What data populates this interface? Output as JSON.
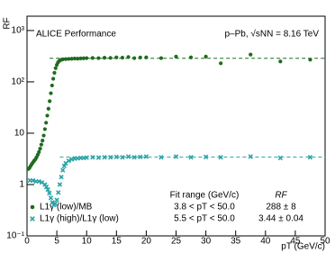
{
  "chart_data": {
    "type": "scatter",
    "y_label": "RF",
    "x_label": "pT (GeV/c)",
    "annotations": [
      "ALICE Performance",
      "p–Pb, √sNN = 8.16 TeV"
    ],
    "legend_headers": [
      "Fit range (GeV/c)",
      "RF"
    ],
    "ylog": true,
    "xlim": [
      0,
      50
    ],
    "xticks": [
      0,
      5,
      10,
      15,
      20,
      25,
      30,
      35,
      40,
      45,
      50
    ],
    "ylim": [
      0.1,
      1900
    ],
    "yticks": [
      {
        "value": 0.1,
        "label": "10⁻¹"
      },
      1,
      10,
      {
        "value": 100,
        "label": "10²"
      },
      {
        "value": 1000,
        "label": "10³"
      }
    ],
    "series": [
      {
        "name": "L1γ (low)/MB",
        "color": "#1f6b1f",
        "marker": "circle",
        "fit_range": "3.8 < pT < 50.0",
        "fit_label": "288 ± 8",
        "fit": {
          "value": 288,
          "xmin": 3.8,
          "xmax": 50
        },
        "x": [
          0.2,
          0.4,
          0.6,
          0.8,
          1.0,
          1.2,
          1.4,
          1.6,
          1.8,
          2.0,
          2.2,
          2.4,
          2.6,
          2.8,
          3.0,
          3.2,
          3.4,
          3.6,
          3.8,
          4.0,
          4.2,
          4.4,
          4.6,
          4.8,
          5.0,
          5.2,
          5.4,
          5.6,
          5.8,
          6.0,
          6.5,
          7,
          7.5,
          8,
          8.5,
          9,
          9.5,
          10,
          11,
          12,
          13,
          14,
          15,
          16,
          17,
          18,
          19,
          20,
          22.5,
          25,
          27.5,
          30,
          32.5,
          37.5,
          42.5,
          47.5
        ],
        "values": [
          2.0,
          2.1,
          2.3,
          2.5,
          2.7,
          2.9,
          3.1,
          3.4,
          3.8,
          4.3,
          5.0,
          6.0,
          7.2,
          9,
          12,
          16,
          22,
          30,
          42,
          60,
          85,
          115,
          150,
          185,
          215,
          240,
          255,
          265,
          270,
          275,
          278,
          280,
          282,
          285,
          283,
          286,
          288,
          290,
          292,
          290,
          295,
          293,
          300,
          296,
          305,
          290,
          298,
          300,
          290,
          310,
          300,
          310,
          230,
          340,
          250,
          270
        ]
      },
      {
        "name": "L1γ (high)/L1γ (low)",
        "color": "#2aa3a6",
        "marker": "cross",
        "fit_range": "5.5 < pT < 50.0",
        "fit_label": "3.44 ± 0.04",
        "fit": {
          "value": 3.44,
          "xmin": 5.5,
          "xmax": 50
        },
        "x": [
          0.5,
          1,
          1.5,
          2,
          2.5,
          3,
          3.25,
          3.5,
          3.75,
          4,
          4.25,
          4.5,
          4.75,
          5,
          5.25,
          5.5,
          5.75,
          6,
          6.25,
          6.5,
          7,
          7.5,
          8,
          8.5,
          9,
          9.5,
          10,
          11,
          12,
          13,
          14,
          15,
          16,
          17,
          18,
          19,
          20,
          22.5,
          25,
          27.5,
          30,
          32.5,
          37.5,
          42.5,
          47.5
        ],
        "values": [
          1.2,
          1.2,
          1.15,
          1.15,
          1.1,
          1.0,
          0.9,
          0.8,
          0.68,
          0.55,
          0.45,
          0.4,
          0.42,
          0.5,
          0.7,
          1.0,
          1.4,
          1.9,
          2.3,
          2.6,
          2.9,
          3.1,
          3.2,
          3.25,
          3.3,
          3.3,
          3.35,
          3.4,
          3.35,
          3.4,
          3.4,
          3.45,
          3.4,
          3.5,
          3.4,
          3.45,
          3.5,
          3.4,
          3.5,
          3.4,
          3.45,
          3.4,
          3.5,
          3.3,
          3.4
        ]
      }
    ]
  }
}
